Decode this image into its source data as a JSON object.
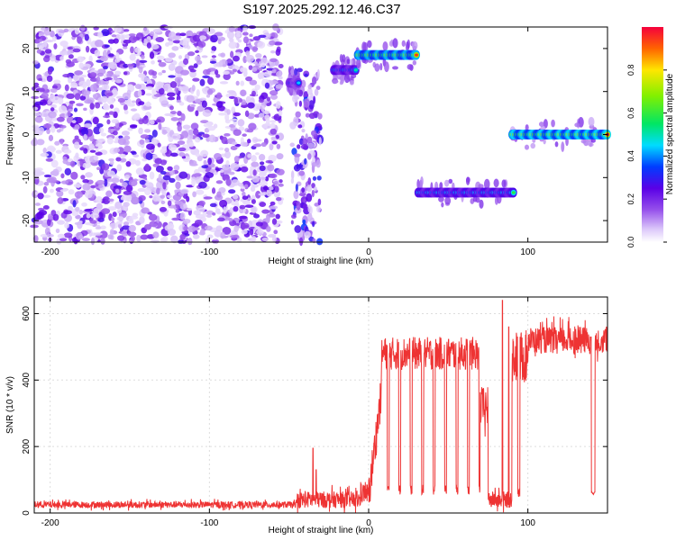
{
  "title": "S197.2025.292.12.46.C37",
  "colors": {
    "snr_line": "#ee3333",
    "frame": "#000000",
    "background": "#ffffff"
  },
  "chart_data": [
    {
      "type": "heatmap",
      "xlabel": "Height of straight line (km)",
      "ylabel": "Frequency (Hz)",
      "xlim": [
        -210,
        150
      ],
      "ylim": [
        -25,
        25
      ],
      "xticks": [
        -200,
        -100,
        0,
        100
      ],
      "yticks": [
        -20,
        -10,
        0,
        10,
        20
      ],
      "colorbar": {
        "label": "Normalized spectral amplitude",
        "range": [
          0,
          1
        ],
        "ticks": [
          "0.0",
          "0.2",
          "0.4",
          "0.6",
          "0.8"
        ],
        "colormap": "rainbow-white-violet-red"
      },
      "features": [
        {
          "x_range": [
            -210,
            -55
          ],
          "freq": "broadband",
          "amplitude_max": 0.2,
          "kind": "noise"
        },
        {
          "x_range": [
            -48,
            -30
          ],
          "freq_range": [
            -25,
            15
          ],
          "amplitude_max": 0.3,
          "kind": "scattered"
        },
        {
          "x_range": [
            -50,
            -44
          ],
          "freq_center": 12,
          "amplitude_max": 0.45,
          "kind": "tone"
        },
        {
          "x_range": [
            -22,
            -8
          ],
          "freq_center": 15,
          "amplitude_max": 0.55,
          "kind": "tone"
        },
        {
          "x_range": [
            -7,
            30
          ],
          "freq_center": 18.5,
          "amplitude_max": 0.95,
          "kind": "tone"
        },
        {
          "x_range": [
            31,
            91
          ],
          "freq_center": -13.5,
          "amplitude_max": 0.6,
          "kind": "tone"
        },
        {
          "x_range": [
            90,
            150
          ],
          "freq_center": 0,
          "amplitude_max": 1.0,
          "kind": "tone"
        }
      ]
    },
    {
      "type": "line",
      "xlabel": "Height of straight line (km)",
      "ylabel": "SNR (10 * v/v)",
      "xlim": [
        -210,
        150
      ],
      "ylim": [
        0,
        650
      ],
      "xticks": [
        -200,
        -100,
        0,
        100
      ],
      "yticks": [
        0,
        200,
        400,
        600
      ],
      "series": [
        {
          "segments": [
            {
              "x_range": [
                -210,
                -45
              ],
              "level": 25,
              "noise": 10,
              "kind": "noise"
            },
            {
              "x_range": [
                -45,
                -5
              ],
              "level": 40,
              "noise": 25,
              "kind": "noise",
              "spikes": [
                {
                  "x": -47,
                  "y": 100
                },
                {
                  "x": -35,
                  "y": 195
                },
                {
                  "x": -33,
                  "y": 130
                }
              ]
            },
            {
              "x_range": [
                -5,
                0
              ],
              "level": 60,
              "noise": 30,
              "kind": "noise"
            },
            {
              "x_range": [
                0,
                8
              ],
              "level": 360,
              "noise": 60,
              "kind": "rise",
              "start": 50
            },
            {
              "x_range": [
                8,
                70
              ],
              "level": 480,
              "noise": 50,
              "kind": "bursty",
              "low": 70
            },
            {
              "x_range": [
                70,
                75
              ],
              "level": 320,
              "noise": 60,
              "kind": "noise"
            },
            {
              "x_range": [
                75,
                90
              ],
              "level": 40,
              "noise": 25,
              "kind": "noise",
              "spikes": [
                {
                  "x": 84,
                  "y": 640
                },
                {
                  "x": 88,
                  "y": 560
                }
              ]
            },
            {
              "x_range": [
                90,
                100
              ],
              "level": 470,
              "noise": 80,
              "kind": "bursty",
              "low": 60
            },
            {
              "x_range": [
                100,
                150
              ],
              "level": 520,
              "noise": 40,
              "kind": "noise",
              "dips": [
                {
                  "x": 141,
                  "y": 60
                }
              ]
            }
          ]
        }
      ]
    }
  ]
}
